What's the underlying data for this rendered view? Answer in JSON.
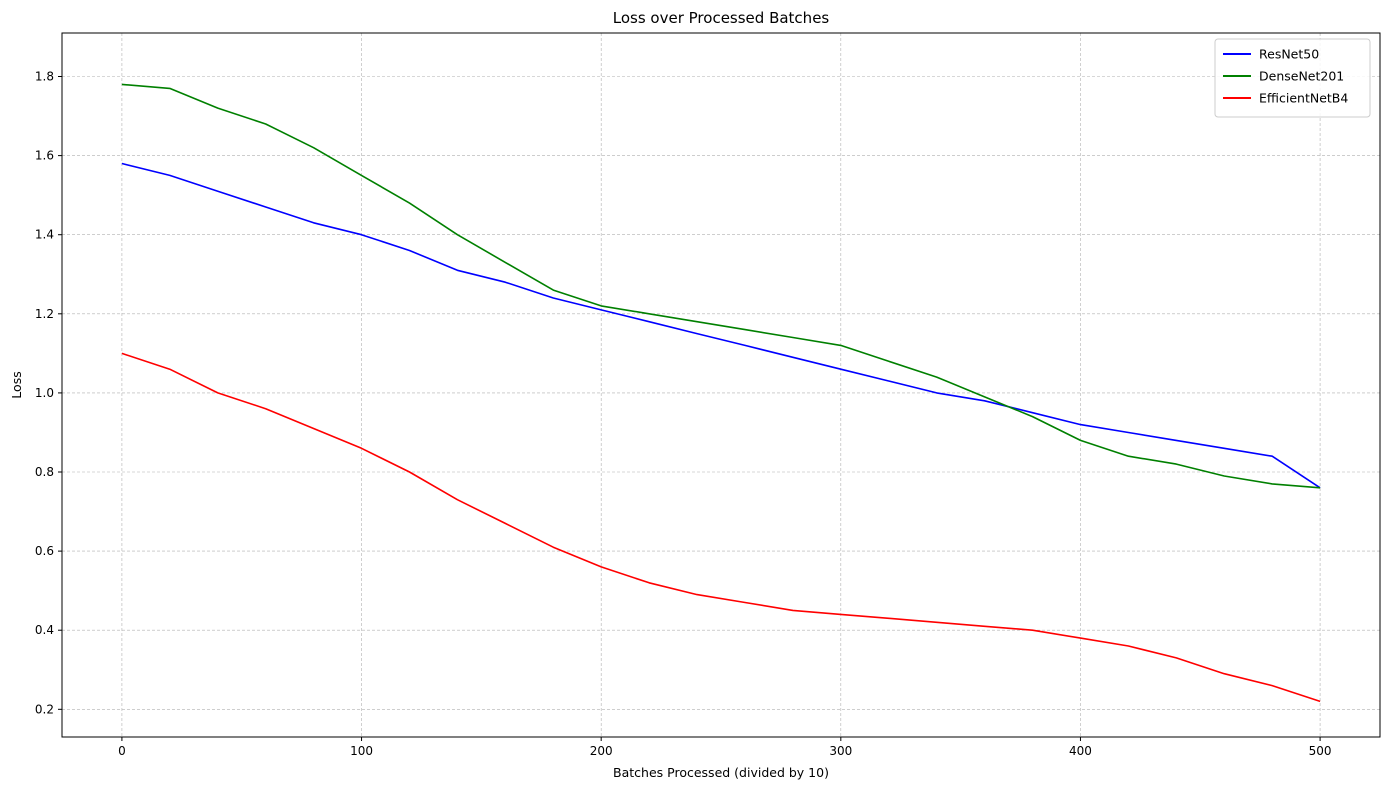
{
  "chart_data": {
    "type": "line",
    "title": "Loss over Processed Batches",
    "xlabel": "Batches Processed (divided by 10)",
    "ylabel": "Loss",
    "xlim": [
      -25,
      525
    ],
    "ylim": [
      0.13,
      1.91
    ],
    "xticks": [
      0,
      100,
      200,
      300,
      400,
      500
    ],
    "yticks": [
      0.2,
      0.4,
      0.6,
      0.8,
      1.0,
      1.2,
      1.4,
      1.6,
      1.8
    ],
    "grid": true,
    "legend_position": "top-right",
    "series": [
      {
        "name": "ResNet50",
        "color": "#0000ff",
        "x": [
          0,
          20,
          40,
          60,
          80,
          100,
          120,
          140,
          160,
          180,
          200,
          220,
          240,
          260,
          280,
          300,
          320,
          340,
          360,
          380,
          400,
          420,
          440,
          460,
          480,
          500
        ],
        "values": [
          1.58,
          1.55,
          1.51,
          1.47,
          1.43,
          1.4,
          1.36,
          1.31,
          1.28,
          1.24,
          1.21,
          1.18,
          1.15,
          1.12,
          1.09,
          1.06,
          1.03,
          1.0,
          0.98,
          0.95,
          0.92,
          0.9,
          0.88,
          0.86,
          0.84,
          0.76
        ]
      },
      {
        "name": "DenseNet201",
        "color": "#008000",
        "x": [
          0,
          20,
          40,
          60,
          80,
          100,
          120,
          140,
          160,
          180,
          200,
          220,
          240,
          260,
          280,
          300,
          320,
          340,
          360,
          380,
          400,
          420,
          440,
          460,
          480,
          500
        ],
        "values": [
          1.78,
          1.77,
          1.72,
          1.68,
          1.62,
          1.55,
          1.48,
          1.4,
          1.33,
          1.26,
          1.22,
          1.2,
          1.18,
          1.16,
          1.14,
          1.12,
          1.08,
          1.04,
          0.99,
          0.94,
          0.88,
          0.84,
          0.82,
          0.79,
          0.77,
          0.76
        ]
      },
      {
        "name": "EfficientNetB4",
        "color": "#ff0000",
        "x": [
          0,
          20,
          40,
          60,
          80,
          100,
          120,
          140,
          160,
          180,
          200,
          220,
          240,
          260,
          280,
          300,
          320,
          340,
          360,
          380,
          400,
          420,
          440,
          460,
          480,
          500
        ],
        "values": [
          1.1,
          1.06,
          1.0,
          0.96,
          0.91,
          0.86,
          0.8,
          0.73,
          0.67,
          0.61,
          0.56,
          0.52,
          0.49,
          0.47,
          0.45,
          0.44,
          0.43,
          0.42,
          0.41,
          0.4,
          0.38,
          0.36,
          0.33,
          0.29,
          0.26,
          0.22
        ]
      }
    ]
  }
}
